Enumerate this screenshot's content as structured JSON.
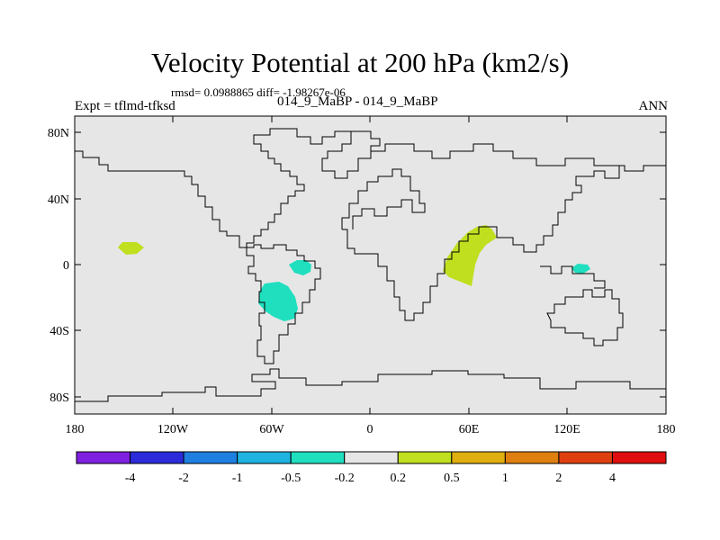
{
  "title": "Velocity Potential at 200 hPa (km2/s)",
  "stats": "rmsd= 0.0988865 diff= -1.98267e-06",
  "experiment": "Expt = tflmd-tfksd",
  "cases": "014_9_MaBP - 014_9_MaBP",
  "season": "ANN",
  "map": {
    "lat_ticks": [
      "80N",
      "40N",
      "0",
      "40S",
      "80S"
    ],
    "lon_ticks": [
      "180",
      "120W",
      "60W",
      "0",
      "60E",
      "120E",
      "180"
    ],
    "background_color": "#e6e6e6"
  },
  "colorbar": {
    "labels": [
      "-4",
      "-2",
      "-1",
      "-0.5",
      "-0.2",
      "0.2",
      "0.5",
      "1",
      "2",
      "4"
    ],
    "colors": [
      "#7f1fdf",
      "#2b2bd9",
      "#1f7fe0",
      "#1fb3e0",
      "#1fdfbf",
      "#e6e6e6",
      "#bfdf1f",
      "#dfaf0f",
      "#df7f0f",
      "#df3f0f",
      "#df0f0f"
    ]
  }
}
